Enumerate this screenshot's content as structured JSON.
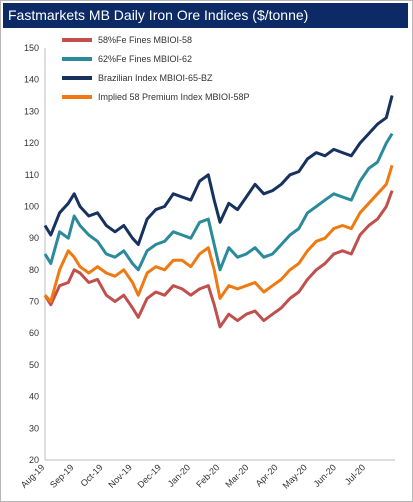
{
  "chart_data": {
    "type": "line",
    "title": "Fastmarkets MB Daily Iron Ore Indices ($/tonne)",
    "xlabel": "",
    "ylabel": "",
    "ylim": [
      20,
      150
    ],
    "yticks": [
      20,
      30,
      40,
      50,
      60,
      70,
      80,
      90,
      100,
      110,
      120,
      130,
      140,
      150
    ],
    "xticks": [
      "Aug-19",
      "Sep-19",
      "Oct-19",
      "Nov-19",
      "Dec-19",
      "Jan-20",
      "Feb-20",
      "Mar-20",
      "Apr-20",
      "May-20",
      "Jun-20",
      "Jul-20"
    ],
    "x_range": [
      0,
      12
    ],
    "grid": false,
    "legend_position": "top-left",
    "series": [
      {
        "name": "58%Fe Fines MBIOI-58",
        "color": "#c0504d",
        "points": [
          [
            0,
            72
          ],
          [
            0.2,
            69
          ],
          [
            0.5,
            75
          ],
          [
            0.8,
            76
          ],
          [
            1.0,
            80
          ],
          [
            1.2,
            79
          ],
          [
            1.5,
            76
          ],
          [
            1.8,
            77
          ],
          [
            2.1,
            72
          ],
          [
            2.4,
            70
          ],
          [
            2.7,
            72
          ],
          [
            3.0,
            68
          ],
          [
            3.2,
            65
          ],
          [
            3.5,
            71
          ],
          [
            3.8,
            73
          ],
          [
            4.1,
            72
          ],
          [
            4.4,
            75
          ],
          [
            4.7,
            74
          ],
          [
            5.0,
            72
          ],
          [
            5.3,
            74
          ],
          [
            5.6,
            75
          ],
          [
            5.8,
            69
          ],
          [
            6.0,
            62
          ],
          [
            6.3,
            66
          ],
          [
            6.6,
            64
          ],
          [
            6.9,
            66
          ],
          [
            7.2,
            67
          ],
          [
            7.5,
            64
          ],
          [
            7.8,
            66
          ],
          [
            8.1,
            68
          ],
          [
            8.4,
            71
          ],
          [
            8.7,
            73
          ],
          [
            9.0,
            77
          ],
          [
            9.3,
            80
          ],
          [
            9.6,
            82
          ],
          [
            9.9,
            85
          ],
          [
            10.2,
            86
          ],
          [
            10.5,
            85
          ],
          [
            10.8,
            91
          ],
          [
            11.1,
            94
          ],
          [
            11.4,
            96
          ],
          [
            11.7,
            100
          ],
          [
            11.9,
            105
          ]
        ]
      },
      {
        "name": "62%Fe Fines MBIOI-62",
        "color": "#2b8a9b",
        "points": [
          [
            0,
            85
          ],
          [
            0.2,
            82
          ],
          [
            0.5,
            92
          ],
          [
            0.8,
            90
          ],
          [
            1.0,
            97
          ],
          [
            1.2,
            94
          ],
          [
            1.5,
            91
          ],
          [
            1.8,
            89
          ],
          [
            2.1,
            85
          ],
          [
            2.4,
            84
          ],
          [
            2.7,
            86
          ],
          [
            3.0,
            82
          ],
          [
            3.2,
            80
          ],
          [
            3.5,
            86
          ],
          [
            3.8,
            88
          ],
          [
            4.1,
            89
          ],
          [
            4.4,
            92
          ],
          [
            4.7,
            91
          ],
          [
            5.0,
            90
          ],
          [
            5.3,
            95
          ],
          [
            5.6,
            96
          ],
          [
            5.8,
            88
          ],
          [
            6.0,
            80
          ],
          [
            6.3,
            87
          ],
          [
            6.6,
            84
          ],
          [
            6.9,
            85
          ],
          [
            7.2,
            87
          ],
          [
            7.5,
            84
          ],
          [
            7.8,
            85
          ],
          [
            8.1,
            88
          ],
          [
            8.4,
            91
          ],
          [
            8.7,
            93
          ],
          [
            9.0,
            98
          ],
          [
            9.3,
            100
          ],
          [
            9.6,
            102
          ],
          [
            9.9,
            104
          ],
          [
            10.2,
            103
          ],
          [
            10.5,
            102
          ],
          [
            10.8,
            108
          ],
          [
            11.1,
            112
          ],
          [
            11.4,
            114
          ],
          [
            11.7,
            120
          ],
          [
            11.9,
            123
          ]
        ]
      },
      {
        "name": "Brazilian Index MBIOI-65-BZ",
        "color": "#17325f",
        "points": [
          [
            0,
            94
          ],
          [
            0.2,
            91
          ],
          [
            0.5,
            98
          ],
          [
            0.8,
            101
          ],
          [
            1.0,
            104
          ],
          [
            1.2,
            100
          ],
          [
            1.5,
            97
          ],
          [
            1.8,
            98
          ],
          [
            2.1,
            94
          ],
          [
            2.4,
            92
          ],
          [
            2.7,
            94
          ],
          [
            3.0,
            90
          ],
          [
            3.2,
            88
          ],
          [
            3.5,
            96
          ],
          [
            3.8,
            99
          ],
          [
            4.1,
            100
          ],
          [
            4.4,
            104
          ],
          [
            4.7,
            103
          ],
          [
            5.0,
            102
          ],
          [
            5.3,
            108
          ],
          [
            5.6,
            110
          ],
          [
            5.8,
            102
          ],
          [
            6.0,
            95
          ],
          [
            6.3,
            101
          ],
          [
            6.6,
            99
          ],
          [
            6.9,
            103
          ],
          [
            7.2,
            107
          ],
          [
            7.5,
            104
          ],
          [
            7.8,
            105
          ],
          [
            8.1,
            107
          ],
          [
            8.4,
            110
          ],
          [
            8.7,
            111
          ],
          [
            9.0,
            115
          ],
          [
            9.3,
            117
          ],
          [
            9.6,
            116
          ],
          [
            9.9,
            118
          ],
          [
            10.2,
            117
          ],
          [
            10.5,
            116
          ],
          [
            10.8,
            120
          ],
          [
            11.1,
            123
          ],
          [
            11.4,
            126
          ],
          [
            11.7,
            128
          ],
          [
            11.9,
            135
          ]
        ]
      },
      {
        "name": "Implied 58 Premium Index MBIOI-58P",
        "color": "#f07a12",
        "points": [
          [
            0,
            72
          ],
          [
            0.2,
            70
          ],
          [
            0.5,
            80
          ],
          [
            0.8,
            86
          ],
          [
            1.0,
            84
          ],
          [
            1.2,
            81
          ],
          [
            1.5,
            79
          ],
          [
            1.8,
            81
          ],
          [
            2.1,
            79
          ],
          [
            2.4,
            78
          ],
          [
            2.7,
            80
          ],
          [
            3.0,
            76
          ],
          [
            3.2,
            72
          ],
          [
            3.5,
            79
          ],
          [
            3.8,
            81
          ],
          [
            4.1,
            80
          ],
          [
            4.4,
            83
          ],
          [
            4.7,
            83
          ],
          [
            5.0,
            81
          ],
          [
            5.3,
            85
          ],
          [
            5.6,
            87
          ],
          [
            5.8,
            80
          ],
          [
            6.0,
            71
          ],
          [
            6.3,
            75
          ],
          [
            6.6,
            74
          ],
          [
            6.9,
            75
          ],
          [
            7.2,
            76
          ],
          [
            7.5,
            73
          ],
          [
            7.8,
            75
          ],
          [
            8.1,
            77
          ],
          [
            8.4,
            80
          ],
          [
            8.7,
            82
          ],
          [
            9.0,
            86
          ],
          [
            9.3,
            89
          ],
          [
            9.6,
            90
          ],
          [
            9.9,
            93
          ],
          [
            10.2,
            94
          ],
          [
            10.5,
            93
          ],
          [
            10.8,
            98
          ],
          [
            11.1,
            101
          ],
          [
            11.4,
            104
          ],
          [
            11.7,
            107
          ],
          [
            11.9,
            113
          ]
        ]
      }
    ]
  }
}
